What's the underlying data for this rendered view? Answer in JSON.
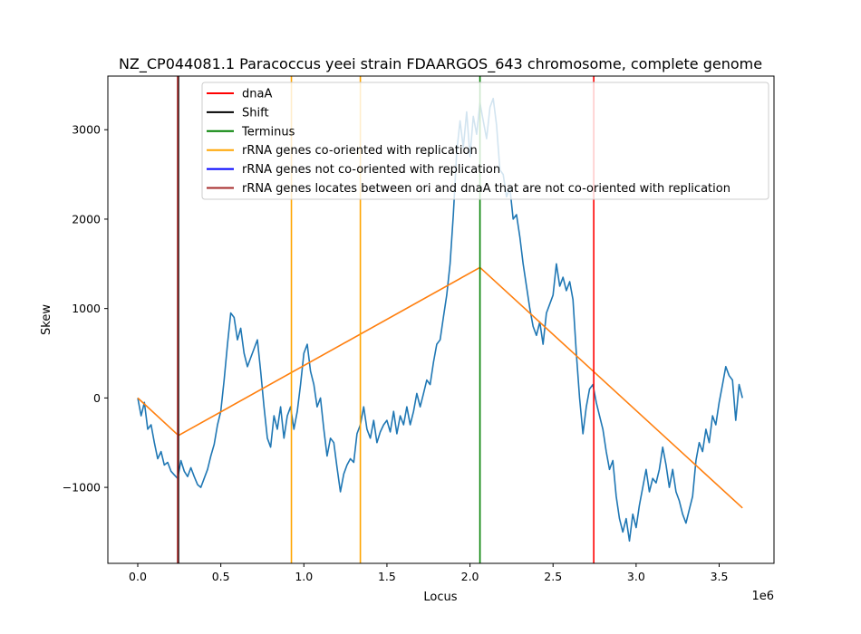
{
  "chart_data": {
    "type": "line",
    "title": "NZ_CP044081.1 Paracoccus yeei strain FDAARGOS_643 chromosome, complete genome",
    "xlabel": "Locus",
    "ylabel": "Skew",
    "x_offset_label": "1e6",
    "xlim": [
      -180000,
      3830000
    ],
    "ylim": [
      -1850,
      3600
    ],
    "x_ticks": [
      0,
      500000,
      1000000,
      1500000,
      2000000,
      2500000,
      3000000,
      3500000
    ],
    "x_tick_labels": [
      "0.0",
      "0.5",
      "1.0",
      "1.5",
      "2.0",
      "2.5",
      "3.0",
      "3.5"
    ],
    "y_ticks": [
      -1000,
      0,
      1000,
      2000,
      3000
    ],
    "y_tick_labels": [
      "−1000",
      "0",
      "1000",
      "2000",
      "3000"
    ],
    "grid": false,
    "legend_position": "top-right",
    "legend": [
      {
        "label": "dnaA",
        "color": "#ff0000"
      },
      {
        "label": "Shift",
        "color": "#000000"
      },
      {
        "label": "Terminus",
        "color": "#008000"
      },
      {
        "label": "rRNA genes co-oriented with replication",
        "color": "#ffa500"
      },
      {
        "label": "rRNA genes not co-oriented with replication",
        "color": "#0000ff"
      },
      {
        "label": "rRNA genes locates between ori and dnaA that are not co-oriented with replication",
        "color": "#a52a2a"
      }
    ],
    "vertical_lines": [
      {
        "category": "Shift",
        "x": 245000,
        "color": "#000000"
      },
      {
        "category": "rRNA genes locates between ori and dnaA that are not co-oriented with replication",
        "x": 240000,
        "color": "#a52a2a"
      },
      {
        "category": "rRNA genes co-oriented with replication",
        "x": 925000,
        "color": "#ffa500"
      },
      {
        "category": "rRNA genes co-oriented with replication",
        "x": 1340000,
        "color": "#ffa500"
      },
      {
        "category": "Terminus",
        "x": 2060000,
        "color": "#008000"
      },
      {
        "category": "dnaA",
        "x": 2745000,
        "color": "#ff0000"
      }
    ],
    "series": [
      {
        "color": "#1f77b4",
        "points": [
          [
            0,
            0
          ],
          [
            20000,
            -200
          ],
          [
            40000,
            -50
          ],
          [
            60000,
            -350
          ],
          [
            80000,
            -300
          ],
          [
            100000,
            -500
          ],
          [
            120000,
            -680
          ],
          [
            140000,
            -600
          ],
          [
            160000,
            -750
          ],
          [
            180000,
            -720
          ],
          [
            200000,
            -820
          ],
          [
            220000,
            -860
          ],
          [
            240000,
            -900
          ],
          [
            260000,
            -700
          ],
          [
            280000,
            -820
          ],
          [
            300000,
            -880
          ],
          [
            320000,
            -780
          ],
          [
            340000,
            -880
          ],
          [
            360000,
            -970
          ],
          [
            380000,
            -1000
          ],
          [
            400000,
            -900
          ],
          [
            420000,
            -800
          ],
          [
            440000,
            -650
          ],
          [
            460000,
            -520
          ],
          [
            480000,
            -300
          ],
          [
            500000,
            -150
          ],
          [
            520000,
            200
          ],
          [
            540000,
            600
          ],
          [
            560000,
            950
          ],
          [
            580000,
            900
          ],
          [
            600000,
            650
          ],
          [
            620000,
            780
          ],
          [
            640000,
            500
          ],
          [
            660000,
            350
          ],
          [
            680000,
            450
          ],
          [
            700000,
            550
          ],
          [
            720000,
            650
          ],
          [
            740000,
            300
          ],
          [
            760000,
            -100
          ],
          [
            780000,
            -450
          ],
          [
            800000,
            -550
          ],
          [
            820000,
            -200
          ],
          [
            840000,
            -350
          ],
          [
            860000,
            -100
          ],
          [
            880000,
            -450
          ],
          [
            900000,
            -200
          ],
          [
            920000,
            -100
          ],
          [
            940000,
            -350
          ],
          [
            960000,
            -150
          ],
          [
            980000,
            150
          ],
          [
            1000000,
            500
          ],
          [
            1020000,
            600
          ],
          [
            1040000,
            300
          ],
          [
            1060000,
            150
          ],
          [
            1080000,
            -100
          ],
          [
            1100000,
            0
          ],
          [
            1120000,
            -350
          ],
          [
            1140000,
            -650
          ],
          [
            1160000,
            -450
          ],
          [
            1180000,
            -500
          ],
          [
            1200000,
            -780
          ],
          [
            1220000,
            -1050
          ],
          [
            1240000,
            -850
          ],
          [
            1260000,
            -750
          ],
          [
            1280000,
            -680
          ],
          [
            1300000,
            -720
          ],
          [
            1320000,
            -400
          ],
          [
            1340000,
            -300
          ],
          [
            1360000,
            -100
          ],
          [
            1380000,
            -350
          ],
          [
            1400000,
            -450
          ],
          [
            1420000,
            -250
          ],
          [
            1440000,
            -500
          ],
          [
            1460000,
            -380
          ],
          [
            1480000,
            -300
          ],
          [
            1500000,
            -250
          ],
          [
            1520000,
            -380
          ],
          [
            1540000,
            -150
          ],
          [
            1560000,
            -400
          ],
          [
            1580000,
            -200
          ],
          [
            1600000,
            -300
          ],
          [
            1620000,
            -100
          ],
          [
            1640000,
            -300
          ],
          [
            1660000,
            -150
          ],
          [
            1680000,
            50
          ],
          [
            1700000,
            -100
          ],
          [
            1720000,
            50
          ],
          [
            1740000,
            200
          ],
          [
            1760000,
            150
          ],
          [
            1780000,
            400
          ],
          [
            1800000,
            600
          ],
          [
            1820000,
            650
          ],
          [
            1840000,
            900
          ],
          [
            1860000,
            1150
          ],
          [
            1880000,
            1500
          ],
          [
            1900000,
            2050
          ],
          [
            1920000,
            2750
          ],
          [
            1940000,
            3100
          ],
          [
            1960000,
            2800
          ],
          [
            1980000,
            3200
          ],
          [
            2000000,
            2700
          ],
          [
            2020000,
            3150
          ],
          [
            2040000,
            2950
          ],
          [
            2060000,
            3300
          ],
          [
            2080000,
            3100
          ],
          [
            2100000,
            2900
          ],
          [
            2120000,
            3250
          ],
          [
            2140000,
            3350
          ],
          [
            2160000,
            3050
          ],
          [
            2180000,
            2550
          ],
          [
            2200000,
            2500
          ],
          [
            2220000,
            2250
          ],
          [
            2240000,
            2350
          ],
          [
            2260000,
            2000
          ],
          [
            2280000,
            2050
          ],
          [
            2300000,
            1800
          ],
          [
            2320000,
            1500
          ],
          [
            2340000,
            1250
          ],
          [
            2360000,
            1000
          ],
          [
            2380000,
            800
          ],
          [
            2400000,
            700
          ],
          [
            2420000,
            850
          ],
          [
            2440000,
            600
          ],
          [
            2460000,
            950
          ],
          [
            2480000,
            1050
          ],
          [
            2500000,
            1150
          ],
          [
            2520000,
            1500
          ],
          [
            2540000,
            1250
          ],
          [
            2560000,
            1350
          ],
          [
            2580000,
            1200
          ],
          [
            2600000,
            1300
          ],
          [
            2620000,
            1100
          ],
          [
            2640000,
            500
          ],
          [
            2660000,
            0
          ],
          [
            2680000,
            -400
          ],
          [
            2700000,
            -100
          ],
          [
            2720000,
            100
          ],
          [
            2740000,
            150
          ],
          [
            2760000,
            -50
          ],
          [
            2780000,
            -200
          ],
          [
            2800000,
            -350
          ],
          [
            2820000,
            -600
          ],
          [
            2840000,
            -800
          ],
          [
            2860000,
            -700
          ],
          [
            2880000,
            -1100
          ],
          [
            2900000,
            -1350
          ],
          [
            2920000,
            -1500
          ],
          [
            2940000,
            -1350
          ],
          [
            2960000,
            -1600
          ],
          [
            2980000,
            -1300
          ],
          [
            3000000,
            -1450
          ],
          [
            3020000,
            -1200
          ],
          [
            3040000,
            -1000
          ],
          [
            3060000,
            -800
          ],
          [
            3080000,
            -1050
          ],
          [
            3100000,
            -900
          ],
          [
            3120000,
            -950
          ],
          [
            3140000,
            -800
          ],
          [
            3160000,
            -550
          ],
          [
            3180000,
            -750
          ],
          [
            3200000,
            -1000
          ],
          [
            3220000,
            -800
          ],
          [
            3240000,
            -1050
          ],
          [
            3260000,
            -1150
          ],
          [
            3280000,
            -1300
          ],
          [
            3300000,
            -1400
          ],
          [
            3320000,
            -1250
          ],
          [
            3340000,
            -1100
          ],
          [
            3360000,
            -700
          ],
          [
            3380000,
            -500
          ],
          [
            3400000,
            -600
          ],
          [
            3420000,
            -350
          ],
          [
            3440000,
            -500
          ],
          [
            3460000,
            -200
          ],
          [
            3480000,
            -300
          ],
          [
            3500000,
            -50
          ],
          [
            3520000,
            150
          ],
          [
            3540000,
            350
          ],
          [
            3560000,
            250
          ],
          [
            3580000,
            200
          ],
          [
            3600000,
            -250
          ],
          [
            3620000,
            150
          ],
          [
            3640000,
            0
          ]
        ]
      },
      {
        "color": "#ff7f0e",
        "points": [
          [
            0,
            0
          ],
          [
            245000,
            -420
          ],
          [
            2060000,
            1460
          ],
          [
            3640000,
            -1230
          ]
        ]
      }
    ]
  }
}
